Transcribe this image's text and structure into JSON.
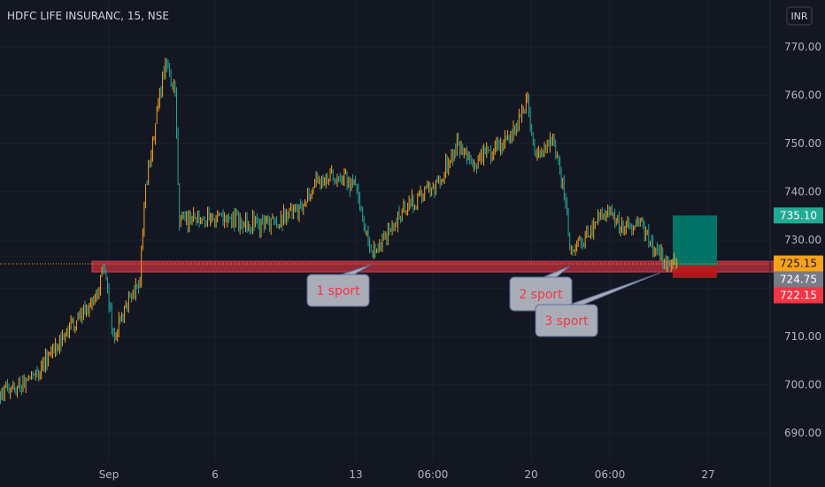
{
  "header": {
    "title": "HDFC LIFE INSURANC, 15, NSE",
    "currency": "INR"
  },
  "colors": {
    "background": "#131722",
    "up": "#f7a21b",
    "down": "#26a69a",
    "support_zone": "#c2303f",
    "target_box": "#00796b",
    "stop_box": "#b71c1c",
    "tag_target": "#22ab94",
    "tag_last": "#f7a21b",
    "tag_entry": "#787b86",
    "tag_stop": "#f23645",
    "note_bg": "#a9adb8",
    "note_text": "#f23645"
  },
  "annotations": [
    {
      "label": "1 sport",
      "date": "2021-09-13 12:30",
      "price": 724.9
    },
    {
      "label": "2 sport",
      "date": "2021-09-21 10:15",
      "price": 724.6
    },
    {
      "label": "3 sport",
      "date": "2021-09-23 13:45",
      "price": 723.2
    }
  ],
  "price_tags": [
    {
      "label": "735.10",
      "value": 735.1,
      "role": "target"
    },
    {
      "label": "725.15",
      "value": 725.15,
      "role": "last"
    },
    {
      "label": "724.75",
      "value": 724.75,
      "role": "entry"
    },
    {
      "label": "722.15",
      "value": 722.15,
      "role": "stop"
    }
  ],
  "chart_data": {
    "type": "candlestick",
    "title": "HDFC LIFE INSURANC, 15, NSE",
    "interval": "15",
    "exchange": "NSE",
    "currency": "INR",
    "ylim": [
      684,
      778
    ],
    "y_ticks": [
      "690.00",
      "700.00",
      "710.00",
      "720.00",
      "730.00",
      "740.00",
      "750.00",
      "760.00",
      "770.00"
    ],
    "x_ticks": [
      "Sep",
      "6",
      "13",
      "06:00",
      "20",
      "06:00",
      "27"
    ],
    "last_price": 725.15,
    "support_zone": {
      "low": 723.4,
      "high": 725.6,
      "from": "2021-09-01 13:00",
      "to": "2021-09-24 15:30"
    },
    "position": {
      "entry": 724.75,
      "target": 735.1,
      "stop": 722.15
    },
    "anchors": [
      {
        "date": "2021-08-30 09:15",
        "close": 698.5
      },
      {
        "date": "2021-08-30 15:15",
        "close": 701.0
      },
      {
        "date": "2021-08-31 12:00",
        "close": 707.0
      },
      {
        "date": "2021-08-31 15:15",
        "close": 711.5
      },
      {
        "date": "2021-09-01 13:00",
        "close": 716.5
      },
      {
        "date": "2021-09-01 15:15",
        "close": 725.0
      },
      {
        "date": "2021-09-02 10:30",
        "close": 710.0
      },
      {
        "date": "2021-09-02 15:15",
        "close": 722.0
      },
      {
        "date": "2021-09-03 10:00",
        "close": 741.0
      },
      {
        "date": "2021-09-03 13:30",
        "close": 768.0
      },
      {
        "date": "2021-09-03 15:15",
        "close": 760.0
      },
      {
        "date": "2021-09-06 09:45",
        "close": 734.0
      },
      {
        "date": "2021-09-07 12:00",
        "close": 734.5
      },
      {
        "date": "2021-09-08 13:00",
        "close": 733.0
      },
      {
        "date": "2021-09-09 12:00",
        "close": 736.0
      },
      {
        "date": "2021-09-09 15:15",
        "close": 742.0
      },
      {
        "date": "2021-09-10 13:00",
        "close": 744.0
      },
      {
        "date": "2021-09-13 09:45",
        "close": 740.5
      },
      {
        "date": "2021-09-13 12:30",
        "close": 726.5
      },
      {
        "date": "2021-09-14 12:00",
        "close": 736.5
      },
      {
        "date": "2021-09-15 12:00",
        "close": 742.0
      },
      {
        "date": "2021-09-15 15:15",
        "close": 750.0
      },
      {
        "date": "2021-09-16 12:00",
        "close": 746.0
      },
      {
        "date": "2021-09-17 12:00",
        "close": 751.0
      },
      {
        "date": "2021-09-17 15:15",
        "close": 758.5
      },
      {
        "date": "2021-09-20 10:30",
        "close": 746.0
      },
      {
        "date": "2021-09-20 13:30",
        "close": 752.0
      },
      {
        "date": "2021-09-21 09:30",
        "close": 738.0
      },
      {
        "date": "2021-09-21 10:15",
        "close": 726.5
      },
      {
        "date": "2021-09-21 14:00",
        "close": 732.0
      },
      {
        "date": "2021-09-22 10:00",
        "close": 736.0
      },
      {
        "date": "2021-09-22 13:30",
        "close": 733.0
      },
      {
        "date": "2021-09-23 10:00",
        "close": 734.0
      },
      {
        "date": "2021-09-23 12:30",
        "close": 728.0
      },
      {
        "date": "2021-09-23 15:15",
        "close": 725.5
      },
      {
        "date": "2021-09-24 10:30",
        "close": 725.15
      }
    ]
  }
}
